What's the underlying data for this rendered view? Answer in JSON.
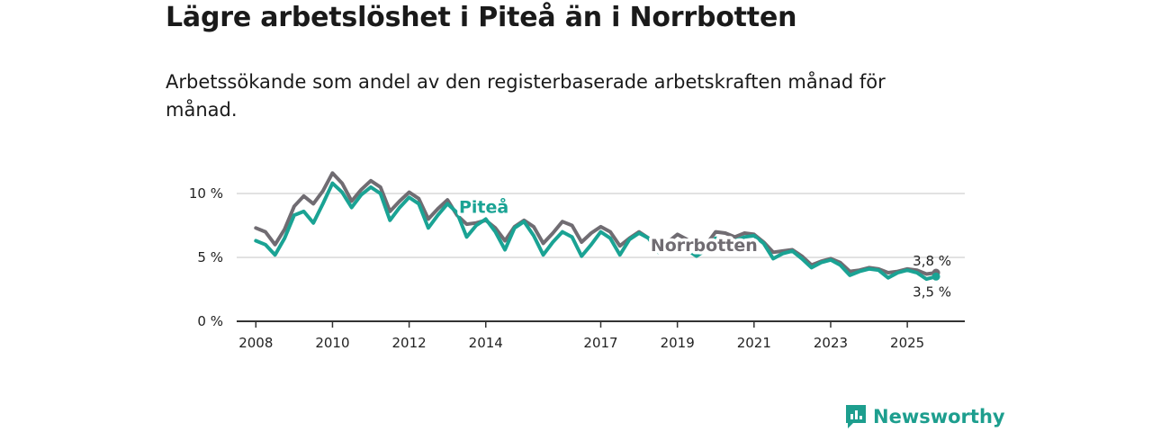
{
  "title": "Lägre arbetslöshet i Piteå än i Norrbotten",
  "subtitle": "Arbetssökande som andel av den registerbaserade arbetskraften månad för månad.",
  "brand": "Newsworthy",
  "colors": {
    "pitea": "#1aa394",
    "norrbotten": "#706c72",
    "axis": "#333333",
    "grid": "#d9d9d9"
  },
  "chart_data": {
    "type": "line",
    "title": "Lägre arbetslöshet i Piteå än i Norrbotten",
    "xlabel": "",
    "ylabel": "",
    "ylim": [
      0,
      13
    ],
    "xlim": [
      2007.5,
      2026.5
    ],
    "y_ticks": [
      {
        "value": 0,
        "label": "0 %"
      },
      {
        "value": 5,
        "label": "5 %"
      },
      {
        "value": 10,
        "label": "10 %"
      }
    ],
    "x_ticks": [
      {
        "value": 2008,
        "label": "2008"
      },
      {
        "value": 2010,
        "label": "2010"
      },
      {
        "value": 2012,
        "label": "2012"
      },
      {
        "value": 2014,
        "label": "2014"
      },
      {
        "value": 2017,
        "label": "2017"
      },
      {
        "value": 2019,
        "label": "2019"
      },
      {
        "value": 2021,
        "label": "2021"
      },
      {
        "value": 2023,
        "label": "2023"
      },
      {
        "value": 2025,
        "label": "2025"
      }
    ],
    "series": [
      {
        "name": "Norrbotten",
        "label": "Norrbotten",
        "end_label": "3,8 %",
        "x": [
          2008.0,
          2008.25,
          2008.5,
          2008.75,
          2009.0,
          2009.25,
          2009.5,
          2009.75,
          2010.0,
          2010.25,
          2010.5,
          2010.75,
          2011.0,
          2011.25,
          2011.5,
          2011.75,
          2012.0,
          2012.25,
          2012.5,
          2012.75,
          2013.0,
          2013.25,
          2013.5,
          2013.75,
          2014.0,
          2014.25,
          2014.5,
          2014.75,
          2015.0,
          2015.25,
          2015.5,
          2015.75,
          2016.0,
          2016.25,
          2016.5,
          2016.75,
          2017.0,
          2017.25,
          2017.5,
          2017.75,
          2018.0,
          2018.25,
          2018.5,
          2018.75,
          2019.0,
          2019.25,
          2019.5,
          2019.75,
          2020.0,
          2020.25,
          2020.5,
          2020.75,
          2021.0,
          2021.25,
          2021.5,
          2021.75,
          2022.0,
          2022.25,
          2022.5,
          2022.75,
          2023.0,
          2023.25,
          2023.5,
          2023.75,
          2024.0,
          2024.25,
          2024.5,
          2024.75,
          2025.0,
          2025.25,
          2025.5,
          2025.75
        ],
        "values": [
          7.3,
          7.0,
          6.0,
          7.2,
          9.0,
          9.8,
          9.2,
          10.2,
          11.6,
          10.8,
          9.4,
          10.3,
          11.0,
          10.5,
          8.6,
          9.4,
          10.1,
          9.6,
          8.0,
          8.8,
          9.5,
          8.3,
          7.6,
          7.7,
          7.9,
          7.3,
          6.3,
          7.4,
          7.9,
          7.4,
          6.1,
          6.9,
          7.8,
          7.5,
          6.2,
          6.9,
          7.4,
          7.0,
          5.9,
          6.5,
          7.0,
          6.5,
          5.6,
          6.2,
          6.8,
          6.4,
          5.4,
          6.0,
          7.0,
          6.9,
          6.6,
          6.9,
          6.8,
          6.2,
          5.4,
          5.5,
          5.6,
          5.1,
          4.4,
          4.7,
          4.9,
          4.6,
          3.9,
          4.0,
          4.2,
          4.1,
          3.8,
          3.9,
          4.1,
          4.0,
          3.7,
          3.8
        ]
      },
      {
        "name": "Piteå",
        "label": "Piteå",
        "end_label": "3,5 %",
        "x": [
          2008.0,
          2008.25,
          2008.5,
          2008.75,
          2009.0,
          2009.25,
          2009.5,
          2009.75,
          2010.0,
          2010.25,
          2010.5,
          2010.75,
          2011.0,
          2011.25,
          2011.5,
          2011.75,
          2012.0,
          2012.25,
          2012.5,
          2012.75,
          2013.0,
          2013.25,
          2013.5,
          2013.75,
          2014.0,
          2014.25,
          2014.5,
          2014.75,
          2015.0,
          2015.25,
          2015.5,
          2015.75,
          2016.0,
          2016.25,
          2016.5,
          2016.75,
          2017.0,
          2017.25,
          2017.5,
          2017.75,
          2018.0,
          2018.25,
          2018.5,
          2018.75,
          2019.0,
          2019.25,
          2019.5,
          2019.75,
          2020.0,
          2020.25,
          2020.5,
          2020.75,
          2021.0,
          2021.25,
          2021.5,
          2021.75,
          2022.0,
          2022.25,
          2022.5,
          2022.75,
          2023.0,
          2023.25,
          2023.5,
          2023.75,
          2024.0,
          2024.25,
          2024.5,
          2024.75,
          2025.0,
          2025.25,
          2025.5,
          2025.75
        ],
        "values": [
          6.3,
          6.0,
          5.2,
          6.5,
          8.3,
          8.6,
          7.7,
          9.2,
          10.8,
          10.1,
          8.9,
          9.9,
          10.5,
          10.0,
          7.9,
          8.9,
          9.7,
          9.2,
          7.3,
          8.3,
          9.2,
          8.5,
          6.6,
          7.5,
          8.0,
          7.0,
          5.6,
          7.3,
          7.8,
          6.7,
          5.2,
          6.2,
          7.0,
          6.6,
          5.1,
          6.0,
          7.0,
          6.5,
          5.2,
          6.4,
          6.9,
          6.5,
          5.4,
          5.6,
          5.9,
          5.6,
          5.1,
          5.6,
          6.5,
          6.4,
          6.3,
          6.6,
          6.7,
          6.1,
          4.9,
          5.3,
          5.5,
          4.9,
          4.2,
          4.6,
          4.8,
          4.4,
          3.6,
          3.9,
          4.1,
          4.0,
          3.4,
          3.8,
          4.0,
          3.8,
          3.3,
          3.5
        ]
      }
    ]
  }
}
